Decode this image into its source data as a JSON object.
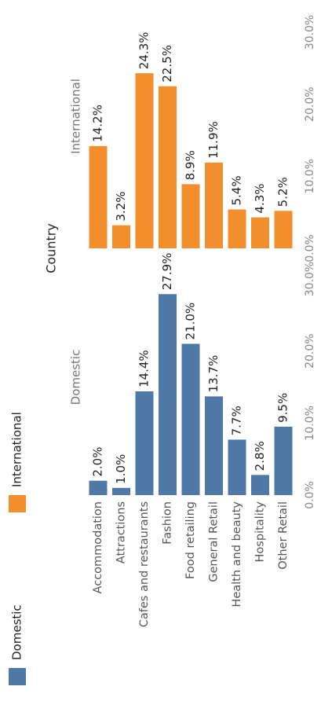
{
  "chart_data": {
    "type": "bar",
    "xlabel": "",
    "ylabel": "",
    "column_header": "Country",
    "categories": [
      "Accommodation",
      "Attractions",
      "Cafes and restaurants",
      "Fashion",
      "Food retailing",
      "General Retail",
      "Health and beauty",
      "Hospitality",
      "Other Retail"
    ],
    "series": [
      {
        "name": "Domestic",
        "color": "#4e79a7",
        "values": [
          2.0,
          1.0,
          14.4,
          27.9,
          21.0,
          13.7,
          7.7,
          2.8,
          9.5
        ],
        "data_labels": [
          "2.0%",
          "1.0%",
          "14.4%",
          "27.9%",
          "21.0%",
          "13.7%",
          "7.7%",
          "2.8%",
          "9.5%"
        ]
      },
      {
        "name": "International",
        "color": "#f28e2b",
        "values": [
          14.2,
          3.2,
          24.3,
          22.5,
          8.9,
          11.9,
          5.4,
          4.3,
          5.2
        ],
        "data_labels": [
          "14.2%",
          "3.2%",
          "24.3%",
          "22.5%",
          "8.9%",
          "11.9%",
          "5.4%",
          "4.3%",
          "5.2%"
        ]
      }
    ],
    "ylim": [
      0,
      30
    ],
    "y_ticks": [
      "0.0%",
      "10.0%",
      "20.0%",
      "30.0%"
    ],
    "legend": {
      "placement": "left",
      "items": [
        "Domestic",
        "International"
      ]
    },
    "grid": false,
    "orientation": "rotated 90 degrees counter-clockwise"
  }
}
